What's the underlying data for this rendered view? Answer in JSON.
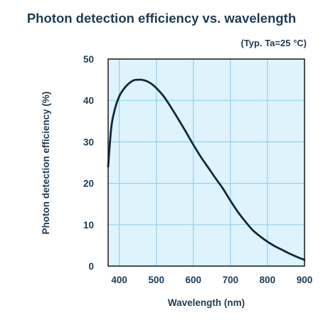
{
  "chart_data": {
    "type": "line",
    "title": "Photon detection efficiency vs. wavelength",
    "subtitle": "(Typ. Ta=25 °C)",
    "xlabel": "Wavelength (nm)",
    "ylabel": "Photon detection efficiency (%)",
    "xlim": [
      370,
      900
    ],
    "ylim": [
      0,
      50
    ],
    "xticks": [
      400,
      500,
      600,
      700,
      800,
      900
    ],
    "xtick_labels": [
      "400",
      "500",
      "600",
      "700",
      "800",
      "900"
    ],
    "yticks": [
      0,
      10,
      20,
      30,
      40,
      50
    ],
    "ytick_labels": [
      "0",
      "10",
      "20",
      "30",
      "40",
      "50"
    ],
    "grid": true,
    "series": [
      {
        "x": [
          370,
          375,
          380,
          390,
          400,
          410,
          420,
          430,
          440,
          450,
          460,
          470,
          480,
          490,
          500,
          520,
          540,
          560,
          580,
          600,
          620,
          640,
          660,
          680,
          700,
          720,
          740,
          760,
          780,
          800,
          820,
          840,
          860,
          880,
          900
        ],
        "y": [
          24,
          30,
          34.5,
          38.5,
          41,
          42.5,
          43.6,
          44.4,
          44.9,
          45,
          45,
          44.8,
          44.4,
          43.8,
          43,
          41,
          38.3,
          35.4,
          32.4,
          29.3,
          26.4,
          23.8,
          21.2,
          18.7,
          15.8,
          13.1,
          10.8,
          8.7,
          7.2,
          5.9,
          4.8,
          3.9,
          3,
          2.2,
          1.5
        ]
      }
    ]
  },
  "colors": {
    "title": "#1d3c55",
    "axis_text": "#1d3c55",
    "plot_bg": "#dff3fc",
    "grid": "#8fd3f0",
    "curve": "#0d2a42",
    "frame": "#1a1a1a"
  }
}
